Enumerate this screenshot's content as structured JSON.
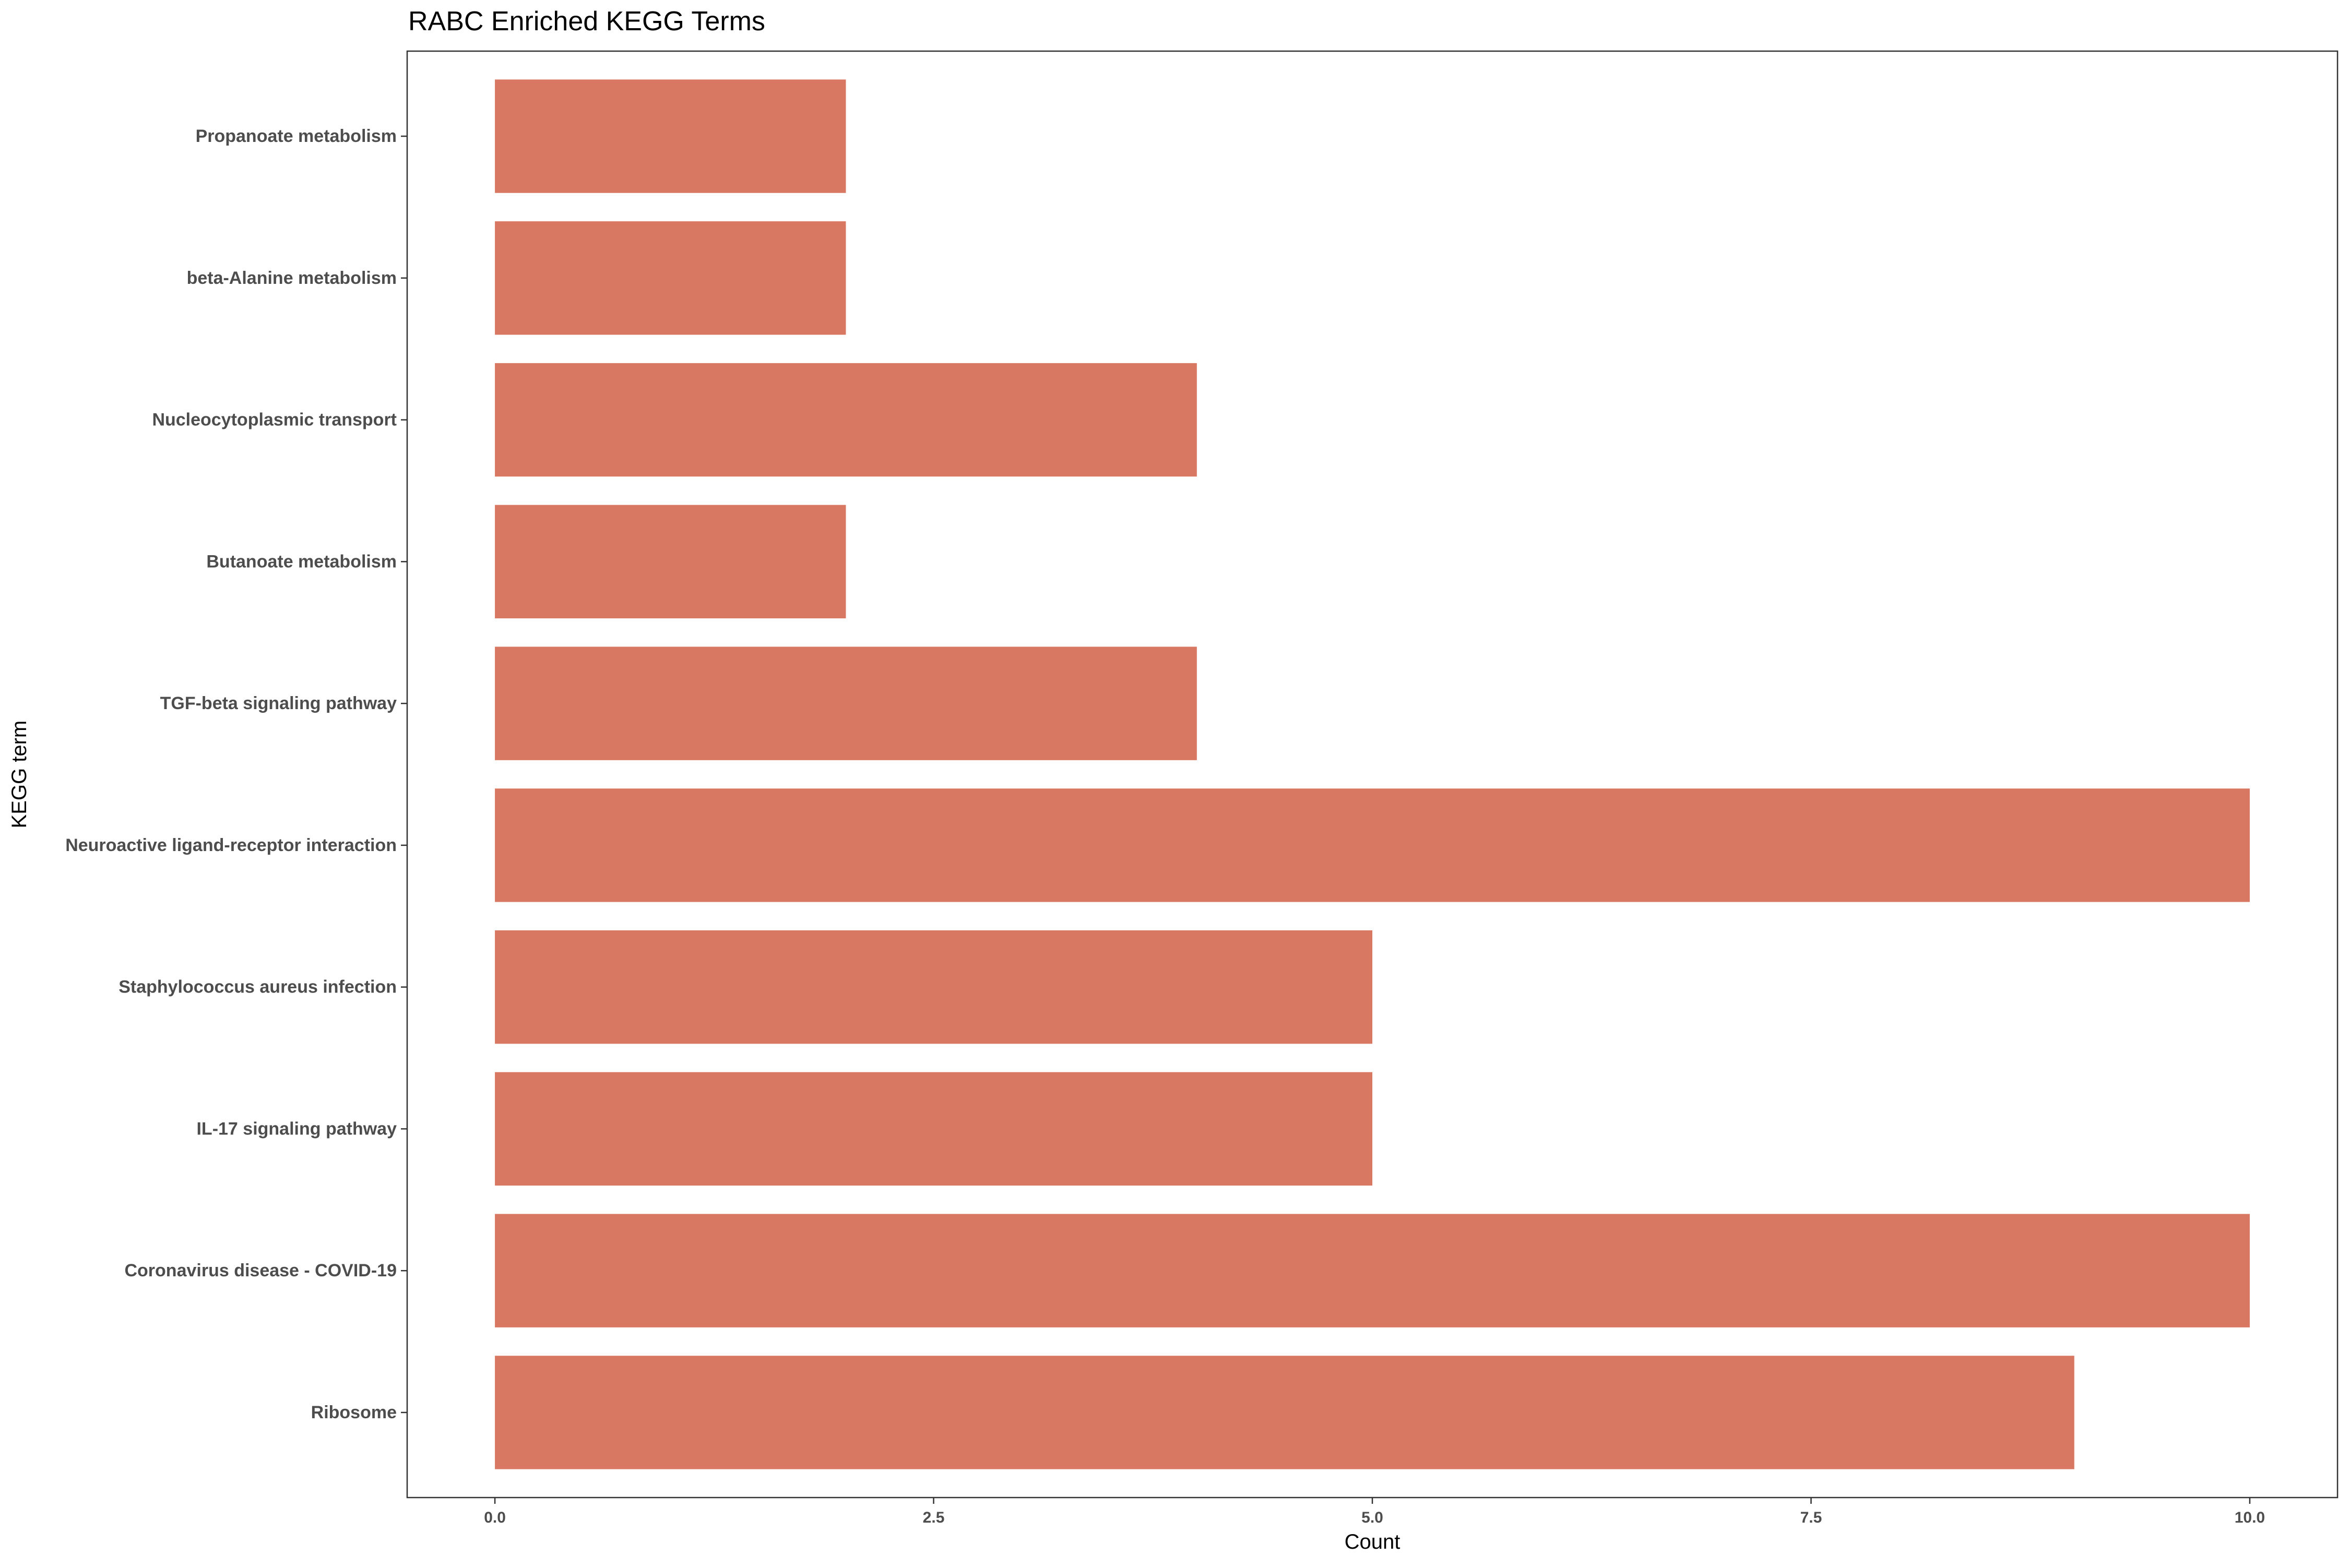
{
  "chart_data": {
    "type": "bar",
    "orientation": "horizontal",
    "title": "RABC Enriched KEGG Terms",
    "xlabel": "Count",
    "ylabel": "KEGG term",
    "categories": [
      "Ribosome",
      "Coronavirus disease - COVID-19",
      "IL-17 signaling pathway",
      "Staphylococcus aureus infection",
      "Neuroactive ligand-receptor interaction",
      "TGF-beta signaling pathway",
      "Butanoate metabolism",
      "Nucleocytoplasmic transport",
      "beta-Alanine metabolism",
      "Propanoate metabolism"
    ],
    "values": [
      9,
      10,
      5,
      5,
      10,
      4,
      2,
      4,
      2,
      2
    ],
    "xlim": [
      -0.5,
      10.5
    ],
    "xticks": [
      0,
      2.5,
      5,
      7.5,
      10
    ],
    "xtick_labels": [
      "0.0",
      "2.5",
      "5.0",
      "7.5",
      "10.0"
    ],
    "bar_color": "#d97862",
    "grid": false,
    "legend": "none"
  }
}
